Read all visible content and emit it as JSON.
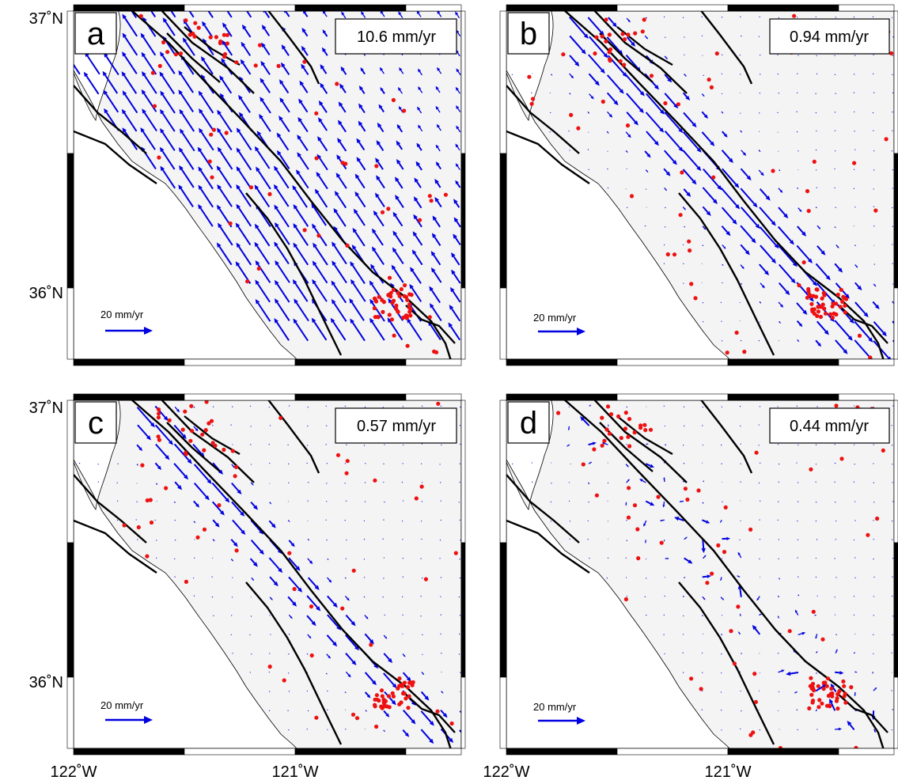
{
  "colors": {
    "vector": "#0000e0",
    "earthquake": "#ee1111",
    "fault": "#000000",
    "land": "#f4f4f4",
    "sea": "#ffffff"
  },
  "axes": {
    "lat_labels": [
      "37˚N",
      "36˚N"
    ],
    "lon_labels": [
      "122˚W",
      "121˚W"
    ],
    "lat_range": [
      35.7,
      37.0
    ],
    "lon_range": [
      -122.0,
      -120.4
    ]
  },
  "scale_label": "20 mm/yr",
  "panels": [
    {
      "id": "a",
      "letter": "a",
      "rate": "10.6 mm/yr",
      "pattern": "uniform"
    },
    {
      "id": "b",
      "letter": "b",
      "rate": "0.94 mm/yr",
      "pattern": "fault-parallel"
    },
    {
      "id": "c",
      "letter": "c",
      "rate": "0.57 mm/yr",
      "pattern": "fault-parallel-weak"
    },
    {
      "id": "d",
      "letter": "d",
      "rate": "0.44 mm/yr",
      "pattern": "scattered"
    }
  ]
}
